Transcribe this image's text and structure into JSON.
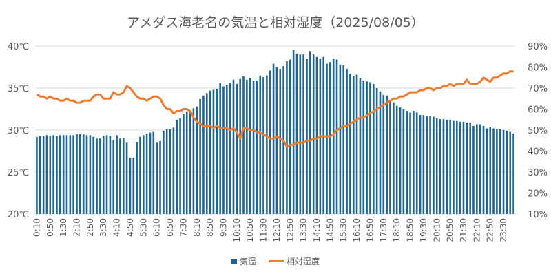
{
  "chart_data": {
    "type": "bar+line",
    "title": "アメダス海老名の気温と相対湿度（2025/08/05）",
    "interval_minutes": 10,
    "first_time": "0:10",
    "x_tick_labels": [
      "0:10",
      "0:50",
      "1:30",
      "2:10",
      "2:50",
      "3:30",
      "4:10",
      "4:50",
      "5:30",
      "6:10",
      "6:50",
      "7:30",
      "8:10",
      "8:50",
      "9:30",
      "10:10",
      "10:50",
      "11:30",
      "12:10",
      "12:50",
      "13:30",
      "14:10",
      "14:50",
      "15:30",
      "16:10",
      "16:50",
      "17:30",
      "18:10",
      "18:50",
      "19:30",
      "20:10",
      "20:50",
      "21:30",
      "22:10",
      "22:50",
      "23:30"
    ],
    "y_left": {
      "ticks": [
        "20℃",
        "25℃",
        "30℃",
        "35℃",
        "40℃"
      ],
      "range": [
        20,
        40
      ],
      "unit": "℃"
    },
    "y_right": {
      "ticks": [
        "10%",
        "20%",
        "30%",
        "40%",
        "50%",
        "60%",
        "70%",
        "80%",
        "90%"
      ],
      "range": [
        10,
        90
      ],
      "unit": "%"
    },
    "grid": true,
    "legend_position": "bottom",
    "series": [
      {
        "name": "気温",
        "type": "bar",
        "axis": "left",
        "color": "#1f6591",
        "values": [
          29.2,
          29.3,
          29.3,
          29.4,
          29.3,
          29.4,
          29.3,
          29.4,
          29.4,
          29.4,
          29.4,
          29.4,
          29.5,
          29.5,
          29.5,
          29.4,
          29.4,
          29.2,
          29.0,
          29.0,
          29.3,
          29.4,
          29.3,
          28.8,
          29.4,
          29.0,
          29.1,
          28.5,
          26.7,
          26.7,
          28.6,
          29.2,
          29.4,
          29.6,
          29.7,
          29.8,
          28.5,
          28.7,
          29.9,
          30.1,
          30.1,
          30.3,
          31.2,
          31.4,
          31.9,
          32.2,
          32.3,
          32.6,
          32.8,
          33.7,
          34.1,
          34.4,
          34.7,
          34.8,
          34.9,
          35.6,
          35.2,
          35.4,
          35.6,
          36.0,
          35.5,
          36.1,
          36.4,
          36.0,
          36.2,
          35.9,
          35.9,
          36.5,
          36.3,
          36.5,
          37.1,
          37.9,
          37.5,
          37.3,
          37.6,
          38.2,
          38.4,
          39.5,
          39.1,
          39.0,
          39.0,
          38.5,
          39.4,
          39.0,
          38.7,
          38.5,
          38.7,
          37.9,
          38.1,
          38.5,
          38.4,
          37.8,
          37.7,
          37.3,
          36.7,
          36.4,
          36.6,
          36.2,
          35.9,
          35.8,
          35.7,
          35.5,
          35.0,
          34.6,
          34.2,
          34.1,
          33.6,
          33.3,
          32.9,
          32.7,
          32.5,
          32.3,
          32.1,
          32.3,
          32.1,
          31.8,
          31.8,
          31.7,
          31.7,
          31.6,
          31.4,
          31.3,
          31.3,
          31.2,
          31.2,
          31.1,
          31.1,
          31.0,
          31.0,
          30.9,
          30.9,
          30.5,
          30.7,
          30.7,
          30.5,
          30.2,
          30.4,
          30.2,
          30.1,
          30.1,
          30.0,
          29.9,
          29.8,
          29.6
        ]
      },
      {
        "name": "相対湿度",
        "type": "line",
        "axis": "right",
        "color": "#ed7d31",
        "values": [
          67,
          66,
          66,
          65,
          66,
          65,
          65,
          64,
          64,
          65,
          64,
          64,
          63,
          63,
          64,
          64,
          64,
          66,
          67,
          67,
          65,
          65,
          65,
          68,
          67,
          67,
          68,
          71,
          70,
          68,
          66,
          65,
          65,
          64,
          65,
          66,
          66,
          65,
          62,
          60,
          60,
          58,
          59,
          59,
          60,
          60,
          59,
          56,
          54,
          53,
          52,
          52,
          52,
          51,
          52,
          51,
          51,
          51,
          50,
          51,
          49,
          46,
          51,
          51,
          50,
          50,
          49,
          49,
          48,
          47,
          46,
          46,
          47,
          46,
          45,
          42,
          43,
          43,
          44,
          44,
          44,
          45,
          45,
          46,
          46,
          47,
          47,
          47,
          47,
          48,
          50,
          51,
          52,
          52,
          53,
          54,
          55,
          56,
          56,
          57,
          58,
          59,
          60,
          61,
          62,
          63,
          64,
          65,
          65,
          66,
          66,
          67,
          68,
          68,
          68,
          69,
          69,
          70,
          70,
          69,
          70,
          70,
          71,
          71,
          72,
          71,
          72,
          72,
          72,
          74,
          72,
          72,
          72,
          73,
          75,
          74,
          73,
          75,
          75,
          76,
          77,
          77,
          78,
          78
        ]
      }
    ]
  }
}
